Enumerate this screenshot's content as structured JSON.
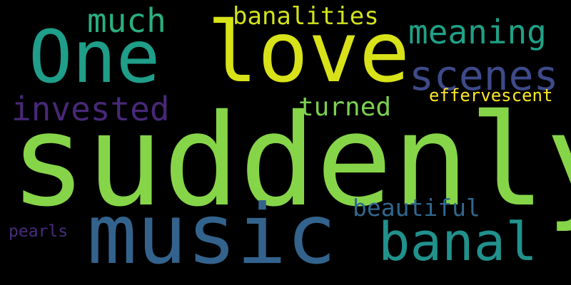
{
  "background": "#000000",
  "words": [
    {
      "id": "suddenly",
      "text": "suddenly",
      "color": "#86d549"
    },
    {
      "id": "music",
      "text": "music",
      "color": "#33638d"
    },
    {
      "id": "love",
      "text": "love",
      "color": "#d8e219"
    },
    {
      "id": "one",
      "text": "One",
      "color": "#1f9e89"
    },
    {
      "id": "banal",
      "text": "banal",
      "color": "#21918c"
    },
    {
      "id": "scenes",
      "text": "scenes",
      "color": "#3e4a89"
    },
    {
      "id": "meaning",
      "text": "meaning",
      "color": "#1fa187"
    },
    {
      "id": "invested",
      "text": "invested",
      "color": "#482878"
    },
    {
      "id": "much",
      "text": "much",
      "color": "#2ab07f"
    },
    {
      "id": "banalities",
      "text": "banalities",
      "color": "#d2e21b"
    },
    {
      "id": "turned",
      "text": "turned",
      "color": "#7ad151"
    },
    {
      "id": "beautiful",
      "text": "beautiful",
      "color": "#31688e"
    },
    {
      "id": "effervescent",
      "text": "effervescent",
      "color": "#fde725"
    },
    {
      "id": "pearls",
      "text": "pearls",
      "color": "#472d7b"
    }
  ]
}
